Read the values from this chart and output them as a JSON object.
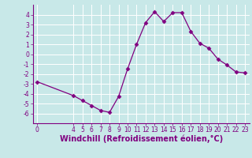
{
  "x": [
    0,
    4,
    5,
    6,
    7,
    8,
    9,
    10,
    11,
    12,
    13,
    14,
    15,
    16,
    17,
    18,
    19,
    20,
    21,
    22,
    23
  ],
  "y": [
    -2.8,
    -4.2,
    -4.7,
    -5.2,
    -5.7,
    -5.9,
    -4.3,
    -1.5,
    1.0,
    3.2,
    4.3,
    3.3,
    4.2,
    4.2,
    2.3,
    1.1,
    0.6,
    -0.5,
    -1.1,
    -1.8,
    -1.9
  ],
  "line_color": "#800080",
  "marker": "D",
  "marker_size": 2.5,
  "bg_color": "#c8e8e8",
  "grid_color": "#aadddd",
  "xlabel": "Windchill (Refroidissement éolien,°C)",
  "xlabel_color": "#800080",
  "ylim": [
    -7,
    5
  ],
  "xlim": [
    -0.5,
    23.5
  ],
  "yticks": [
    -6,
    -5,
    -4,
    -3,
    -2,
    -1,
    0,
    1,
    2,
    3,
    4
  ],
  "xticks": [
    0,
    4,
    5,
    6,
    7,
    8,
    9,
    10,
    11,
    12,
    13,
    14,
    15,
    16,
    17,
    18,
    19,
    20,
    21,
    22,
    23
  ],
  "tick_color": "#800080",
  "tick_labelsize": 5.5,
  "xlabel_fontsize": 7.0,
  "xlabel_fontweight": "bold",
  "spine_color": "#800080"
}
